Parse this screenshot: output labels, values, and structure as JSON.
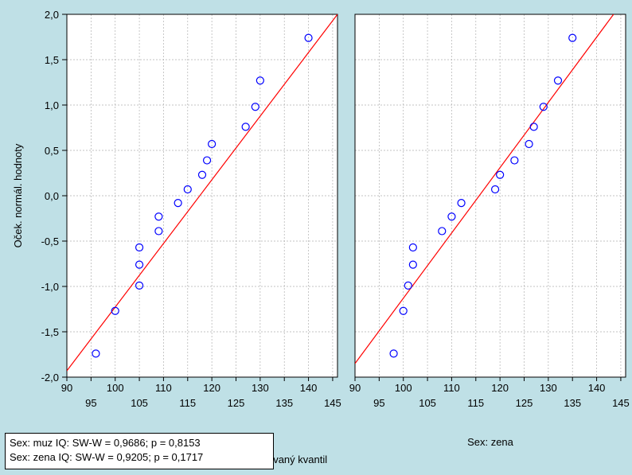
{
  "chart_data": {
    "type": "scatter",
    "ylabel": "Oček. normál. hodnoty",
    "xlabel": "Pozorovaný kvantil",
    "ylim": [
      -2.0,
      2.0
    ],
    "yticks": [
      "2,0",
      "1,5",
      "1,0",
      "0,5",
      "0,0",
      "-0,5",
      "-1,0",
      "-1,5",
      "-2,0"
    ],
    "yticks_values": [
      2.0,
      1.5,
      1.0,
      0.5,
      0.0,
      -0.5,
      -1.0,
      -1.5,
      -2.0
    ],
    "grid": true,
    "marker_color": "#0000ff",
    "line_color": "#ff0000",
    "panels": [
      {
        "label": "Sex: muz",
        "xlim": [
          90,
          146
        ],
        "xticks_top": [
          "90",
          "100",
          "110",
          "120",
          "130",
          "140"
        ],
        "xticks_bottom": [
          "95",
          "105",
          "115",
          "125",
          "135",
          "145"
        ],
        "points": [
          {
            "x": 96,
            "y": -1.74
          },
          {
            "x": 100,
            "y": -1.27
          },
          {
            "x": 105,
            "y": -0.99
          },
          {
            "x": 105,
            "y": -0.76
          },
          {
            "x": 105,
            "y": -0.57
          },
          {
            "x": 109,
            "y": -0.39
          },
          {
            "x": 109,
            "y": -0.23
          },
          {
            "x": 113,
            "y": -0.08
          },
          {
            "x": 115,
            "y": 0.07
          },
          {
            "x": 118,
            "y": 0.23
          },
          {
            "x": 119,
            "y": 0.39
          },
          {
            "x": 120,
            "y": 0.57
          },
          {
            "x": 127,
            "y": 0.76
          },
          {
            "x": 129,
            "y": 0.98
          },
          {
            "x": 130,
            "y": 1.27
          },
          {
            "x": 140,
            "y": 1.74
          }
        ],
        "fit_line": [
          {
            "x": 90,
            "y": -1.93
          },
          {
            "x": 146,
            "y": 2.0
          }
        ]
      },
      {
        "label": "Sex: zena",
        "xlim": [
          90,
          146
        ],
        "xticks_top": [
          "90",
          "100",
          "110",
          "120",
          "130",
          "140"
        ],
        "xticks_bottom": [
          "95",
          "105",
          "115",
          "125",
          "135",
          "145"
        ],
        "points": [
          {
            "x": 98,
            "y": -1.74
          },
          {
            "x": 100,
            "y": -1.27
          },
          {
            "x": 101,
            "y": -0.99
          },
          {
            "x": 102,
            "y": -0.76
          },
          {
            "x": 102,
            "y": -0.57
          },
          {
            "x": 108,
            "y": -0.39
          },
          {
            "x": 110,
            "y": -0.23
          },
          {
            "x": 112,
            "y": -0.08
          },
          {
            "x": 119,
            "y": 0.07
          },
          {
            "x": 120,
            "y": 0.23
          },
          {
            "x": 123,
            "y": 0.39
          },
          {
            "x": 126,
            "y": 0.57
          },
          {
            "x": 127,
            "y": 0.76
          },
          {
            "x": 129,
            "y": 0.98
          },
          {
            "x": 132,
            "y": 1.27
          },
          {
            "x": 135,
            "y": 1.74
          }
        ],
        "fit_line": [
          {
            "x": 90,
            "y": -1.85
          },
          {
            "x": 143.5,
            "y": 2.0
          }
        ]
      }
    ],
    "legend": [
      "Sex: muz  IQ:  SW-W = 0,9686; p = 0,8153",
      "Sex: zena  IQ:  SW-W = 0,9205; p = 0,1717"
    ],
    "legend_position": "bottom-left"
  }
}
